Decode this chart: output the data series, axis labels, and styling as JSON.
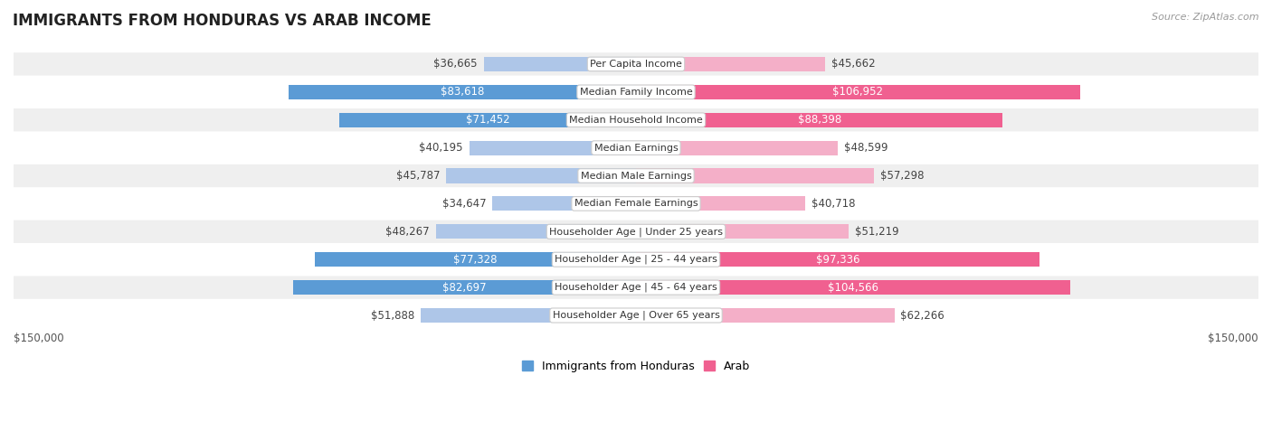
{
  "title": "IMMIGRANTS FROM HONDURAS VS ARAB INCOME",
  "source": "Source: ZipAtlas.com",
  "categories": [
    "Per Capita Income",
    "Median Family Income",
    "Median Household Income",
    "Median Earnings",
    "Median Male Earnings",
    "Median Female Earnings",
    "Householder Age | Under 25 years",
    "Householder Age | 25 - 44 years",
    "Householder Age | 45 - 64 years",
    "Householder Age | Over 65 years"
  ],
  "honduras_values": [
    36665,
    83618,
    71452,
    40195,
    45787,
    34647,
    48267,
    77328,
    82697,
    51888
  ],
  "arab_values": [
    45662,
    106952,
    88398,
    48599,
    57298,
    40718,
    51219,
    97336,
    104566,
    62266
  ],
  "honduras_labels": [
    "$36,665",
    "$83,618",
    "$71,452",
    "$40,195",
    "$45,787",
    "$34,647",
    "$48,267",
    "$77,328",
    "$82,697",
    "$51,888"
  ],
  "arab_labels": [
    "$45,662",
    "$106,952",
    "$88,398",
    "$48,599",
    "$57,298",
    "$40,718",
    "$51,219",
    "$97,336",
    "$104,566",
    "$62,266"
  ],
  "honduras_color_light": "#aec6e8",
  "honduras_color_dark": "#5b9bd5",
  "arab_color_light": "#f4afc8",
  "arab_color_dark": "#f06090",
  "max_value": 150000,
  "axis_label": "$150,000",
  "bar_height": 0.52,
  "row_bg_even": "#efefef",
  "row_bg_odd": "#ffffff",
  "label_fontsize": 8.5,
  "title_fontsize": 12,
  "category_fontsize": 8.0,
  "legend_fontsize": 9,
  "dark_threshold": 65000
}
